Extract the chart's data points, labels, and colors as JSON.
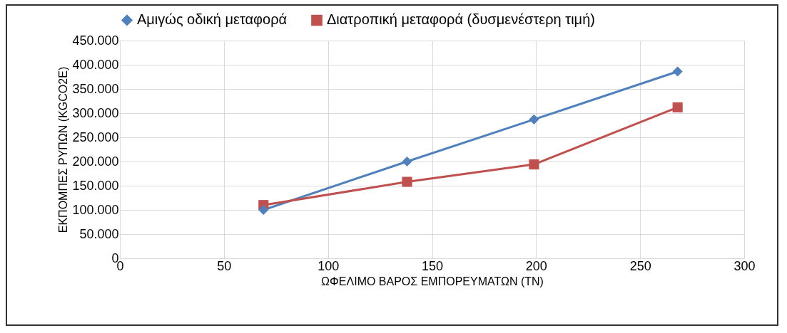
{
  "chart_data": {
    "type": "line",
    "xlabel": "ΩΦΕΛΙΜΟ ΒΑΡΟΣ ΕΜΠΟΡΕΥΜΑΤΩΝ  (ΤΝ)",
    "ylabel": "ΕΚΠΟΜΠΕΣ  ΡΥΠΩΝ (KGCO2E)",
    "x": [
      69,
      138,
      199,
      268
    ],
    "series": [
      {
        "name": "Αμιγώς οδική μεταφορά",
        "color": "#4f81bd",
        "marker": "diamond",
        "values": [
          100000,
          200000,
          287000,
          386000
        ]
      },
      {
        "name": "Διατροπική μεταφορά (δυσμενέστερη τιμή)",
        "color": "#c0504d",
        "marker": "square",
        "values": [
          110000,
          158000,
          194000,
          312000
        ]
      }
    ],
    "xlim": [
      0,
      300
    ],
    "xticks": [
      0,
      50,
      100,
      150,
      200,
      250,
      300
    ],
    "ylim": [
      0,
      450000
    ],
    "yticks": [
      {
        "value": 0,
        "label": "0"
      },
      {
        "value": 50000,
        "label": "50.000"
      },
      {
        "value": 100000,
        "label": "100.000"
      },
      {
        "value": 150000,
        "label": "150.000"
      },
      {
        "value": 200000,
        "label": "200.000"
      },
      {
        "value": 250000,
        "label": "250.000"
      },
      {
        "value": 300000,
        "label": "300.000"
      },
      {
        "value": 350000,
        "label": "350.000"
      },
      {
        "value": 400000,
        "label": "400.000"
      },
      {
        "value": 450000,
        "label": "450.000"
      }
    ],
    "grid": true,
    "legend": "top",
    "line_style": "solid"
  }
}
